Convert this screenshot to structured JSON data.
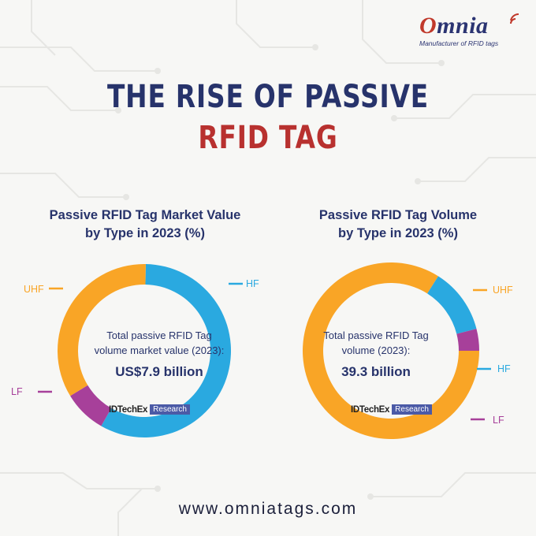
{
  "brand": {
    "logo_text": "Omnia",
    "tagline": "Manufacturer of RFID tags"
  },
  "title": {
    "line1": "THE RISE OF PASSIVE",
    "line2": "RFID TAG"
  },
  "colors": {
    "navy": "#27336b",
    "red": "#b8312f",
    "uhf": "#f9a526",
    "hf": "#2aa9e0",
    "lf": "#a7409a"
  },
  "chart_data": [
    {
      "type": "pie",
      "title": "Passive RFID Tag Market Value by Type in 2023 (%)",
      "title_line1": "Passive RFID Tag Market Value",
      "title_line2": "by Type in 2023 (%)",
      "categories": [
        "HF",
        "LF",
        "UHF"
      ],
      "values": [
        58,
        8,
        34
      ],
      "center_label_line1": "Total passive RFID Tag",
      "center_label_line2": "volume market value (2023):",
      "center_value": "US$7.9 billion",
      "source": "IDTechEx",
      "source_tag": "Research"
    },
    {
      "type": "pie",
      "title": "Passive RFID Tag Volume by Type in 2023 (%)",
      "title_line1": "Passive RFID Tag Volume",
      "title_line2": "by Type in 2023 (%)",
      "categories": [
        "UHF",
        "HF",
        "LF"
      ],
      "values": [
        84,
        12,
        4
      ],
      "center_label_line1": "Total passive RFID Tag",
      "center_label_line2": "volume (2023):",
      "center_value": "39.3 billion",
      "source": "IDTechEx",
      "source_tag": "Research"
    }
  ],
  "footer": {
    "url": "www.omniatags.com"
  }
}
